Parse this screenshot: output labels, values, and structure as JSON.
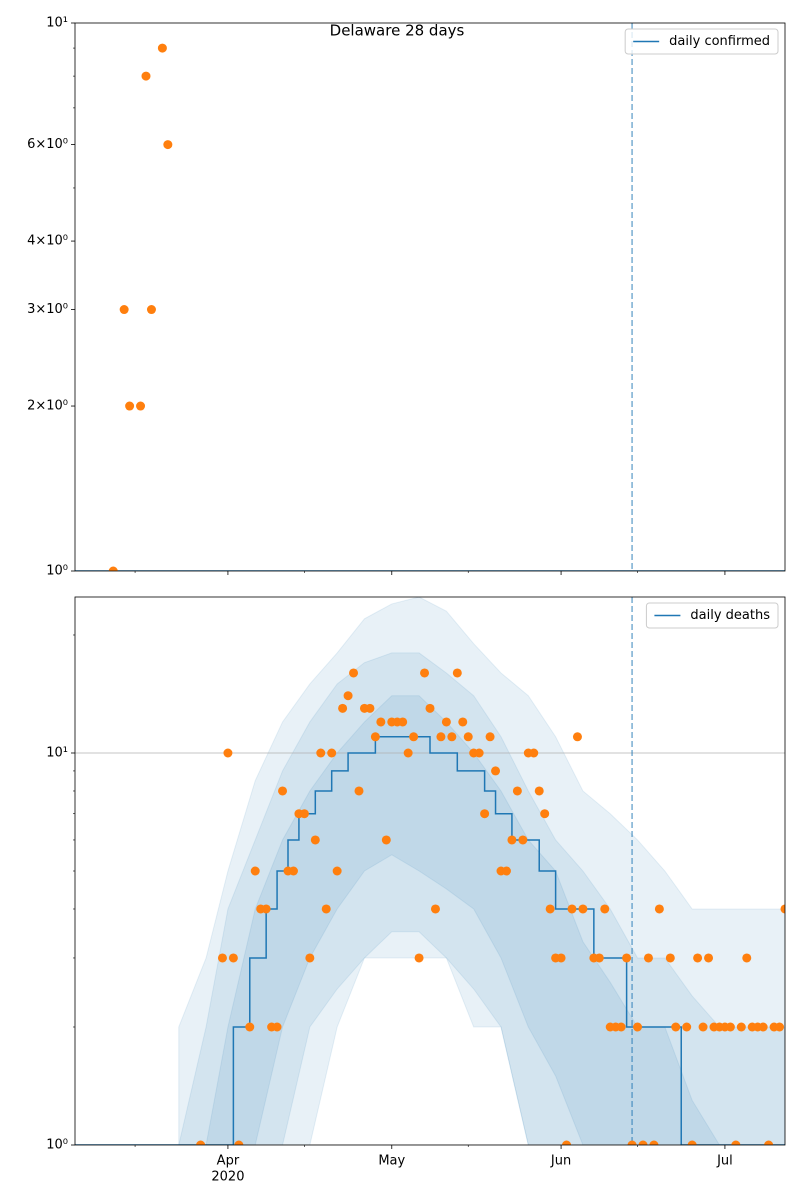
{
  "chart_data": [
    {
      "type": "line",
      "title": "Delaware 28 days",
      "log_y": true,
      "grid": false,
      "xlim": [
        "2020-03-04",
        "2020-07-12"
      ],
      "ylim": [
        1,
        10
      ],
      "xticks": [
        "2020-04-01",
        "2020-05-01",
        "2020-06-01",
        "2020-07-01"
      ],
      "xminor": [
        "2020-03-15",
        "2020-04-15",
        "2020-05-15",
        "2020-06-15"
      ],
      "yticks": [
        {
          "value": 1,
          "label": "10⁰"
        },
        {
          "value": 2,
          "label": "2×10⁰"
        },
        {
          "value": 3,
          "label": "3×10⁰"
        },
        {
          "value": 4,
          "label": "4×10⁰"
        },
        {
          "value": 6,
          "label": "6×10⁰"
        },
        {
          "value": 10,
          "label": "10¹"
        }
      ],
      "yminor": [
        5,
        7,
        8,
        9
      ],
      "legend": "upper right",
      "series": [
        {
          "name": "daily confirmed",
          "color": "#1f77b4",
          "x": [
            "2020-03-04",
            "2020-07-12"
          ],
          "values": [
            1,
            1
          ]
        }
      ],
      "observed": {
        "color": "#ff7f0e",
        "x": [
          "2020-03-11",
          "2020-03-13",
          "2020-03-14",
          "2020-03-16",
          "2020-03-17",
          "2020-03-18",
          "2020-03-20",
          "2020-03-21"
        ],
        "values": [
          1,
          3,
          2,
          2,
          8,
          3,
          9,
          6
        ]
      },
      "vline": {
        "x": "2020-06-14",
        "color": "#1f77b4",
        "style": "dashed"
      }
    },
    {
      "type": "line",
      "log_y": true,
      "grid": true,
      "xlim": [
        "2020-03-04",
        "2020-07-12"
      ],
      "ylim": [
        1,
        25
      ],
      "xticks": [
        {
          "value": "2020-04-01",
          "label": "Apr"
        },
        {
          "value": "2020-05-01",
          "label": "May"
        },
        {
          "value": "2020-06-01",
          "label": "Jun"
        },
        {
          "value": "2020-07-01",
          "label": "Jul"
        }
      ],
      "xtick_year": "2020",
      "xminor": [
        "2020-03-15",
        "2020-04-15",
        "2020-05-15",
        "2020-06-15"
      ],
      "yticks": [
        {
          "value": 1,
          "label": "10⁰"
        },
        {
          "value": 10,
          "label": "10¹"
        }
      ],
      "yminor": [
        2,
        3,
        4,
        5,
        6,
        7,
        8,
        9,
        20
      ],
      "legend": "upper right",
      "bands": {
        "color": "#1f77b4",
        "alpha": 0.1,
        "x": [
          "2020-03-23",
          "2020-03-28",
          "2020-04-01",
          "2020-04-06",
          "2020-04-11",
          "2020-04-16",
          "2020-04-21",
          "2020-04-26",
          "2020-05-01",
          "2020-05-06",
          "2020-05-11",
          "2020-05-16",
          "2020-05-21",
          "2020-05-26",
          "2020-05-31",
          "2020-06-05",
          "2020-06-10",
          "2020-06-15",
          "2020-06-20",
          "2020-06-25",
          "2020-06-30",
          "2020-07-05",
          "2020-07-12"
        ],
        "intervals": [
          {
            "lower": [
              1,
              1,
              1,
              1,
              1,
              1,
              2,
              3,
              3,
              3,
              3,
              2,
              2,
              1,
              1,
              1,
              1,
              1,
              1,
              1,
              1,
              1,
              1
            ],
            "upper": [
              2,
              3,
              5,
              8.5,
              12,
              15,
              18,
              22,
              24,
              25,
              23,
              19,
              16,
              14,
              11,
              8,
              7,
              6,
              5,
              4,
              4,
              4,
              4
            ]
          },
          {
            "lower": [
              1,
              1,
              1,
              1,
              1,
              2,
              2.5,
              3,
              3.5,
              3.5,
              3,
              2.5,
              2,
              1,
              1,
              1,
              1,
              1,
              1,
              1,
              1,
              1,
              1
            ],
            "upper": [
              1,
              2,
              4,
              6,
              9,
              12,
              15,
              17,
              18,
              18,
              16,
              14,
              11,
              8,
              6,
              5,
              4,
              3,
              3,
              2.4,
              2,
              2,
              2
            ]
          },
          {
            "lower": [
              1,
              1,
              1,
              1,
              2,
              3,
              4,
              5,
              5.5,
              5,
              4.5,
              4,
              3,
              2,
              1.5,
              1,
              1,
              1,
              1,
              1,
              1,
              1,
              1
            ],
            "upper": [
              1,
              1,
              2,
              4,
              6,
              8,
              10,
              12,
              14,
              14,
              12,
              10,
              8,
              6,
              5,
              3.3,
              2.6,
              2,
              2,
              1.3,
              1,
              1,
              1
            ]
          }
        ]
      },
      "series": [
        {
          "name": "daily deaths",
          "color": "#1f77b4",
          "drawstyle": "steps-post",
          "x": [
            "2020-03-04",
            "2020-04-02",
            "2020-04-05",
            "2020-04-08",
            "2020-04-10",
            "2020-04-12",
            "2020-04-14",
            "2020-04-17",
            "2020-04-20",
            "2020-04-23",
            "2020-04-28",
            "2020-05-08",
            "2020-05-13",
            "2020-05-18",
            "2020-05-20",
            "2020-05-23",
            "2020-05-28",
            "2020-05-31",
            "2020-06-07",
            "2020-06-13",
            "2020-06-23",
            "2020-07-12"
          ],
          "values": [
            1,
            2,
            3,
            4,
            5,
            6,
            7,
            8,
            9,
            10,
            11,
            10,
            9,
            8,
            7,
            6,
            5,
            4,
            3,
            2,
            1,
            1
          ]
        }
      ],
      "observed": {
        "color": "#ff7f0e",
        "x": [
          "2020-03-27",
          "2020-03-31",
          "2020-04-01",
          "2020-04-02",
          "2020-04-03",
          "2020-04-05",
          "2020-04-06",
          "2020-04-07",
          "2020-04-08",
          "2020-04-09",
          "2020-04-10",
          "2020-04-11",
          "2020-04-12",
          "2020-04-13",
          "2020-04-14",
          "2020-04-15",
          "2020-04-16",
          "2020-04-17",
          "2020-04-18",
          "2020-04-19",
          "2020-04-20",
          "2020-04-21",
          "2020-04-22",
          "2020-04-23",
          "2020-04-24",
          "2020-04-25",
          "2020-04-26",
          "2020-04-27",
          "2020-04-28",
          "2020-04-29",
          "2020-04-30",
          "2020-05-01",
          "2020-05-02",
          "2020-05-03",
          "2020-05-04",
          "2020-05-05",
          "2020-05-06",
          "2020-05-07",
          "2020-05-08",
          "2020-05-09",
          "2020-05-10",
          "2020-05-11",
          "2020-05-12",
          "2020-05-13",
          "2020-05-14",
          "2020-05-15",
          "2020-05-16",
          "2020-05-17",
          "2020-05-18",
          "2020-05-19",
          "2020-05-20",
          "2020-05-21",
          "2020-05-22",
          "2020-05-23",
          "2020-05-24",
          "2020-05-25",
          "2020-05-26",
          "2020-05-27",
          "2020-05-28",
          "2020-05-29",
          "2020-05-30",
          "2020-05-31",
          "2020-06-01",
          "2020-06-02",
          "2020-06-03",
          "2020-06-04",
          "2020-06-05",
          "2020-06-07",
          "2020-06-08",
          "2020-06-09",
          "2020-06-10",
          "2020-06-11",
          "2020-06-12",
          "2020-06-13",
          "2020-06-14",
          "2020-06-15",
          "2020-06-16",
          "2020-06-17",
          "2020-06-18",
          "2020-06-19",
          "2020-06-21",
          "2020-06-22",
          "2020-06-24",
          "2020-06-25",
          "2020-06-26",
          "2020-06-27",
          "2020-06-28",
          "2020-06-29",
          "2020-06-30",
          "2020-07-01",
          "2020-07-02",
          "2020-07-03",
          "2020-07-04",
          "2020-07-05",
          "2020-07-06",
          "2020-07-07",
          "2020-07-08",
          "2020-07-09",
          "2020-07-10",
          "2020-07-11",
          "2020-07-12"
        ],
        "values": [
          1,
          3,
          10,
          3,
          1,
          2,
          5,
          4,
          4,
          2,
          2,
          8,
          5,
          5,
          7,
          7,
          3,
          6,
          10,
          4,
          10,
          5,
          13,
          14,
          16,
          8,
          13,
          13,
          11,
          12,
          6,
          12,
          12,
          12,
          10,
          11,
          3,
          16,
          13,
          4,
          11,
          12,
          11,
          16,
          12,
          11,
          10,
          10,
          7,
          11,
          9,
          5,
          5,
          6,
          8,
          6,
          10,
          10,
          8,
          7,
          4,
          3,
          3,
          1,
          4,
          11,
          4,
          3,
          3,
          4,
          2,
          2,
          2,
          3,
          1,
          2,
          1,
          3,
          1,
          4,
          3,
          2,
          2,
          1,
          3,
          2,
          3,
          2,
          2,
          2,
          2,
          1,
          2,
          3,
          2,
          2,
          2,
          1,
          2,
          2,
          4
        ]
      },
      "vline": {
        "x": "2020-06-14",
        "color": "#1f77b4",
        "style": "dashed"
      }
    }
  ]
}
